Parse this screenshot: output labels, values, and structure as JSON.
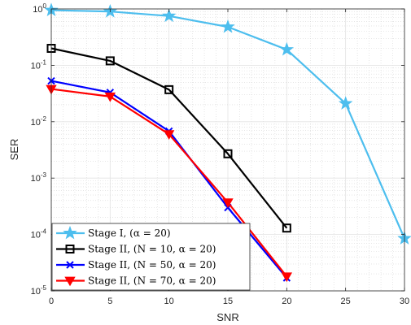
{
  "chart_data": {
    "type": "line",
    "xlabel": "SNR",
    "ylabel": "SER",
    "xlim": [
      0,
      30
    ],
    "ylim": [
      1e-05,
      1
    ],
    "yscale": "log",
    "x_ticks": [
      0,
      5,
      10,
      15,
      20,
      25,
      30
    ],
    "y_ticks": [
      {
        "value": 1e-05,
        "base": "10",
        "exp": "-5"
      },
      {
        "value": 0.0001,
        "base": "10",
        "exp": "-4"
      },
      {
        "value": 0.001,
        "base": "10",
        "exp": "-3"
      },
      {
        "value": 0.01,
        "base": "10",
        "exp": "-2"
      },
      {
        "value": 0.1,
        "base": "10",
        "exp": "-1"
      },
      {
        "value": 1,
        "base": "10",
        "exp": "0"
      }
    ],
    "grid": true,
    "legend_position": "bottom-left",
    "series": [
      {
        "name": "Stage I,  (α = 20)",
        "marker": "star",
        "color": "#4DBEEE",
        "x": [
          0,
          5,
          10,
          15,
          20,
          25,
          30
        ],
        "y": [
          0.95,
          0.9,
          0.75,
          0.48,
          0.19,
          0.021,
          8.5e-05
        ]
      },
      {
        "name": "Stage II,  (N = 10,  α = 20)",
        "marker": "square",
        "color": "#000000",
        "x": [
          0,
          5,
          10,
          15,
          20
        ],
        "y": [
          0.2,
          0.12,
          0.037,
          0.0027,
          0.00013
        ]
      },
      {
        "name": "Stage II,  (N = 50,  α = 20)",
        "marker": "x",
        "color": "#0000FF",
        "x": [
          0,
          5,
          10,
          15,
          20
        ],
        "y": [
          0.053,
          0.033,
          0.0068,
          0.0003,
          1.7e-05
        ]
      },
      {
        "name": "Stage II,  (N = 70,  α = 20)",
        "marker": "triangle-down",
        "color": "#FF0000",
        "x": [
          0,
          5,
          10,
          15,
          20
        ],
        "y": [
          0.038,
          0.028,
          0.006,
          0.00037,
          1.8e-05
        ]
      }
    ]
  }
}
